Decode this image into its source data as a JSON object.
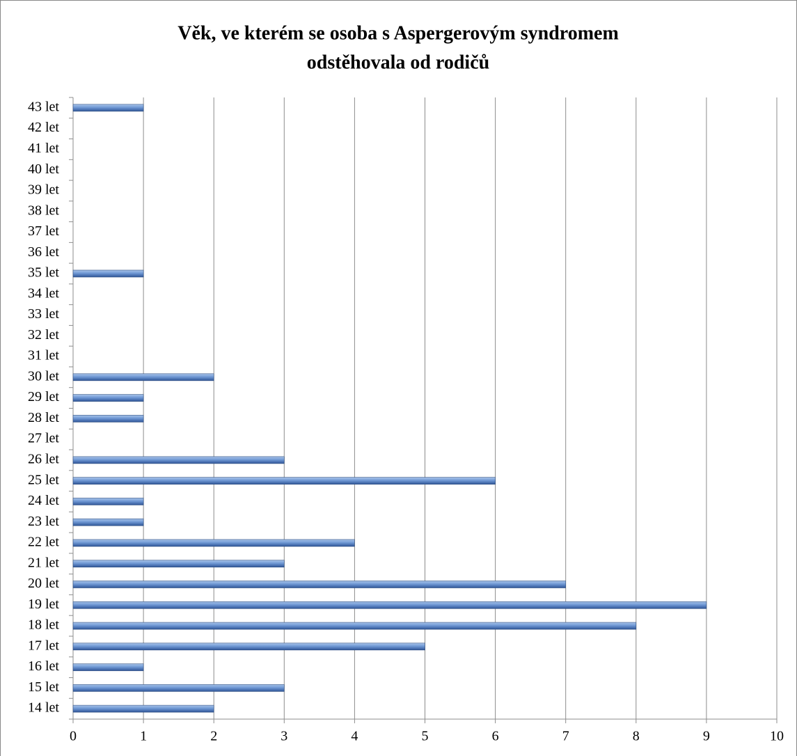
{
  "chart_data": {
    "type": "barh",
    "title": [
      "Věk, ve kterém se osoba s Aspergerovým syndromem",
      "odstěhovala od rodičů"
    ],
    "categories": [
      "14 let",
      "15 let",
      "16 let",
      "17 let",
      "18 let",
      "19 let",
      "20 let",
      "21 let",
      "22 let",
      "23 let",
      "24 let",
      "25 let",
      "26 let",
      "27 let",
      "28 let",
      "29 let",
      "30 let",
      "31 let",
      "32 let",
      "33 let",
      "34 let",
      "35 let",
      "36 let",
      "37 let",
      "38 let",
      "39 let",
      "40 let",
      "41 let",
      "42 let",
      "43 let"
    ],
    "values": [
      2,
      3,
      1,
      5,
      8,
      9,
      7,
      3,
      4,
      1,
      1,
      6,
      3,
      0,
      1,
      1,
      2,
      0,
      0,
      0,
      0,
      1,
      0,
      0,
      0,
      0,
      0,
      0,
      0,
      1
    ],
    "color": "#4f81bd",
    "xlim": [
      0,
      10
    ],
    "xticks": [
      0,
      1,
      2,
      3,
      4,
      5,
      6,
      7,
      8,
      9,
      10
    ],
    "grid": true
  }
}
